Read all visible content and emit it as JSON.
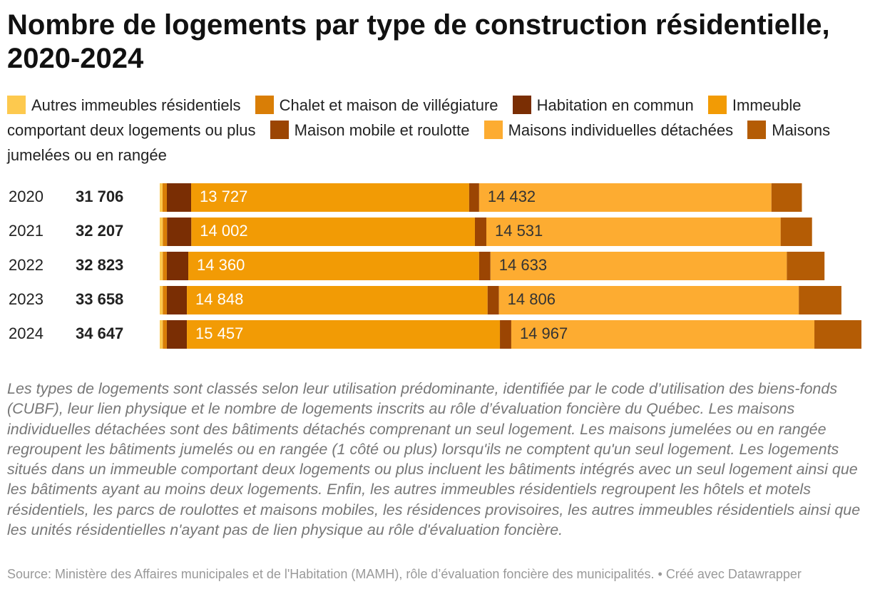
{
  "chart_data": {
    "type": "stacked-bar",
    "title": "Nombre de logements par type de construction résidentielle, 2020-2024",
    "categories": [
      "2020",
      "2021",
      "2022",
      "2023",
      "2024"
    ],
    "totals": {
      "values": [
        31706,
        32207,
        32823,
        33658,
        34647
      ],
      "value_labels": [
        "31 706",
        "32 207",
        "32 823",
        "33 658",
        "34 647"
      ]
    },
    "series": [
      {
        "name": "Autres immeubles résidentiels",
        "color": "#fdc94e",
        "values": [
          141,
          150,
          150,
          150,
          150
        ]
      },
      {
        "name": "Chalet et maison de villégiature",
        "color": "#d97e06",
        "values": [
          211,
          210,
          200,
          200,
          200
        ]
      },
      {
        "name": "Habitation en commun",
        "color": "#7a2e04",
        "values": [
          1198,
          1200,
          1060,
          990,
          990
        ]
      },
      {
        "name": "Immeuble comportant deux logements ou plus",
        "color": "#f29b05",
        "values": [
          13727,
          14002,
          14360,
          14848,
          15457
        ],
        "value_labels": [
          "13 727",
          "14 002",
          "14 360",
          "14 848",
          "15 457"
        ]
      },
      {
        "name": "Maison mobile et roulotte",
        "color": "#9b4503",
        "values": [
          493,
          564,
          560,
          560,
          560
        ]
      },
      {
        "name": "Maisons individuelles détachées",
        "color": "#fdac31",
        "values": [
          14432,
          14531,
          14633,
          14806,
          14967
        ],
        "value_labels": [
          "14 432",
          "14 531",
          "14 633",
          "14 806",
          "14 967"
        ]
      },
      {
        "name": "Maisons jumelées ou en rangée",
        "color": "#b45c05",
        "values": [
          1504,
          1550,
          1860,
          2104,
          2323
        ]
      }
    ],
    "notes": "Les types de logements sont classés selon leur utilisation prédominante, identifiée par le code d’utilisation des biens-fonds (CUBF), leur lien physique et le nombre de logements inscrits au rôle d’évaluation foncière du Québec. Les maisons individuelles détachées sont des bâtiments détachés comprenant un seul logement. Les maisons jumelées ou en rangée regroupent les bâtiments jumelés ou en rangée (1 côté ou plus) lorsqu'ils ne comptent qu'un seul logement. Les logements situés dans un immeuble comportant deux logements ou plus incluent les bâtiments intégrés avec un seul logement ainsi que les bâtiments ayant au moins deux logements. Enfin, les autres immeubles résidentiels regroupent les hôtels et motels résidentiels, les parcs de roulottes et maisons mobiles, les résidences provisoires, les autres immeubles résidentiels ainsi que les unités résidentielles n'ayant pas de lien physique au rôle d'évaluation foncière.",
    "source": "Source: Ministère des Affaires municipales et de l'Habitation (MAMH), rôle d’évaluation foncière des municipalités. • Créé avec Datawrapper"
  }
}
